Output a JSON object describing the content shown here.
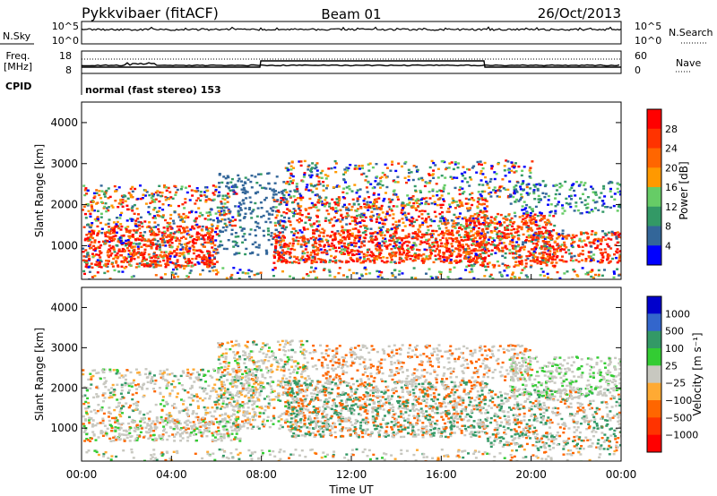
{
  "header": {
    "station": "Pykkvibaer (fitACF)",
    "beam": "Beam 01",
    "date": "26/Oct/2013"
  },
  "top_panels": {
    "noise": {
      "left_label": "N.Sky",
      "left_ticks": [
        "10^5",
        "10^0"
      ],
      "right_ticks": [
        "10^5",
        "10^0"
      ],
      "right_label": "N.Search"
    },
    "freq": {
      "left_label_line1": "Freq.",
      "left_label_line2": "[MHz]",
      "left_ticks": [
        "18",
        "8"
      ],
      "right_ticks": [
        "60",
        "0"
      ],
      "right_label": "Nave"
    },
    "cpid": {
      "label": "CPID",
      "text": "normal (fast stereo) 153"
    }
  },
  "chart_data": [
    {
      "type": "heatmap",
      "name": "power",
      "ylabel": "Slant Range [km]",
      "ylim": [
        180,
        4500
      ],
      "yticks": [
        "4000",
        "3000",
        "2000",
        "1000"
      ],
      "xlim": [
        0,
        24
      ],
      "colorbar": {
        "label": "Power [dB]",
        "ticks": [
          "28",
          "24",
          "20",
          "16",
          "12",
          "8",
          "4"
        ],
        "colors": [
          "#ff0000",
          "#ff3300",
          "#ff6600",
          "#ff9900",
          "#66cc66",
          "#339966",
          "#336699",
          "#0000ff"
        ]
      }
    },
    {
      "type": "heatmap",
      "name": "velocity",
      "ylabel": "Slant Range [km]",
      "ylim": [
        180,
        4500
      ],
      "yticks": [
        "4000",
        "3000",
        "2000",
        "1000"
      ],
      "xlim": [
        0,
        24
      ],
      "xticks": [
        "00:00",
        "04:00",
        "08:00",
        "12:00",
        "16:00",
        "20:00",
        "00:00"
      ],
      "xlabel": "Time UT",
      "colorbar": {
        "label": "Velocity [m s⁻¹]",
        "ticks": [
          "1000",
          "500",
          "100",
          "25",
          "−25",
          "−100",
          "−500",
          "−1000"
        ],
        "colors": [
          "#0000cc",
          "#3366cc",
          "#339966",
          "#33cc33",
          "#c8c8c0",
          "#ffaa33",
          "#ff6600",
          "#ff3300",
          "#ff0000"
        ]
      }
    }
  ]
}
